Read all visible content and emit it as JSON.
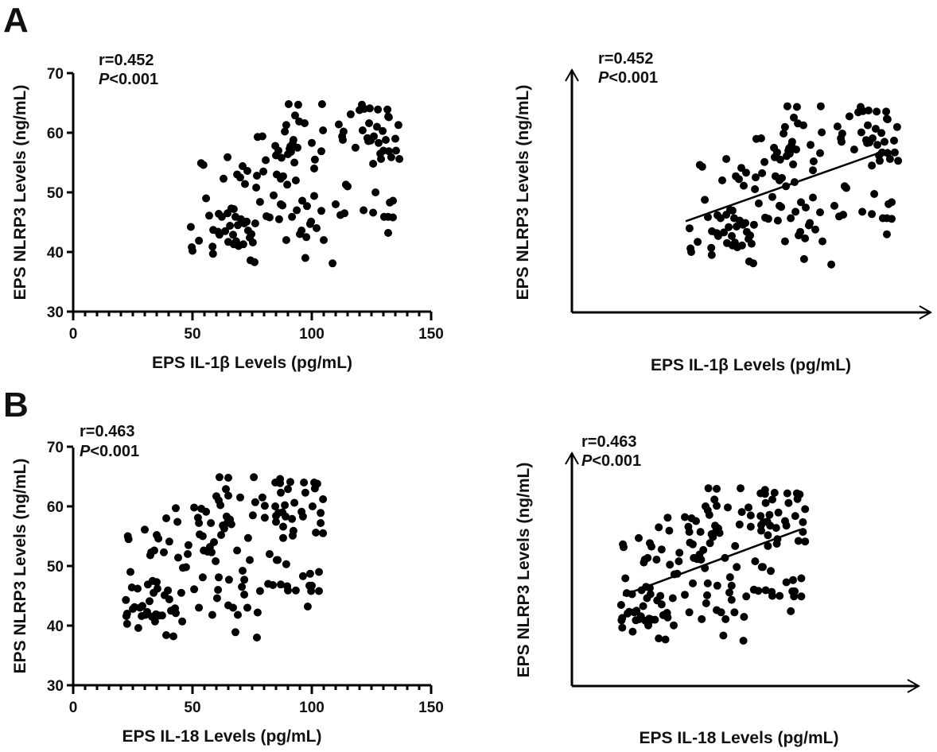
{
  "figure": {
    "panel_labels": [
      "A",
      "B"
    ]
  },
  "chart_data": [
    {
      "id": "A-left",
      "type": "scatter",
      "panel": "A",
      "annotation": {
        "r": "r=0.452",
        "p_italic": "P",
        "p_rest": "<0.001"
      },
      "xlabel": "EPS IL-1β Levels (pg/mL)",
      "ylabel": "EPS NLRP3 Levels (ng/mL)",
      "xlim": [
        0,
        150
      ],
      "ylim": [
        30,
        70
      ],
      "xticks": [
        0,
        50,
        100,
        150
      ],
      "yticks": [
        30,
        40,
        50,
        60,
        70
      ],
      "x_minor_step": 5,
      "grid": false,
      "fit_line": null,
      "points_ref": "A"
    },
    {
      "id": "A-right",
      "type": "scatter",
      "panel": "A",
      "annotation": {
        "r": "r=0.452",
        "p_italic": "P",
        "p_rest": "<0.001"
      },
      "xlabel": "EPS IL-1β Levels (pg/mL)",
      "ylabel": "EPS NLRP3 Levels (ng/mL)",
      "axes_style": "arrows-no-ticks",
      "grid": false,
      "fit_line": {
        "x": [
          47.7,
          132.7
        ],
        "y": [
          45.4,
          57.5
        ]
      },
      "points_ref": "A"
    },
    {
      "id": "B-left",
      "type": "scatter",
      "panel": "B",
      "annotation": {
        "r": "r=0.463",
        "p_italic": "P",
        "p_rest": "<0.001"
      },
      "xlabel": "EPS IL-18 Levels (pg/mL)",
      "ylabel": "EPS NLRP3 Levels (ng/mL)",
      "xlim": [
        0,
        150
      ],
      "ylim": [
        30,
        70
      ],
      "xticks": [
        0,
        50,
        100,
        150
      ],
      "yticks": [
        30,
        40,
        50,
        60,
        70
      ],
      "x_minor_step": 5,
      "grid": false,
      "fit_line": null,
      "points_ref": "B"
    },
    {
      "id": "B-right",
      "type": "scatter",
      "panel": "B",
      "annotation": {
        "r": "r=0.463",
        "p_italic": "P",
        "p_rest": "<0.001"
      },
      "xlabel": "EPS IL-18 Levels (pg/mL)",
      "ylabel": "EPS NLRP3 Levels (ng/mL)",
      "axes_style": "arrows-no-ticks",
      "grid": false,
      "fit_line": {
        "x": [
          22.9,
          102.5
        ],
        "y": [
          46.0,
          57.6
        ]
      },
      "points_ref": "B"
    }
  ],
  "datasets": {
    "A": [
      [
        49.3,
        44.2
      ],
      [
        49.7,
        40.8
      ],
      [
        50.0,
        40.2
      ],
      [
        52.7,
        41.9
      ],
      [
        53.6,
        54.9
      ],
      [
        54.6,
        54.6
      ],
      [
        55.7,
        49.0
      ],
      [
        57.0,
        46.1
      ],
      [
        58.4,
        40.9
      ],
      [
        58.6,
        39.7
      ],
      [
        58.7,
        43.7
      ],
      [
        60.7,
        43.4
      ],
      [
        61.0,
        46.4
      ],
      [
        61.3,
        42.9
      ],
      [
        62.3,
        45.9
      ],
      [
        63.0,
        52.3
      ],
      [
        63.7,
        43.5
      ],
      [
        64.7,
        55.9
      ],
      [
        64.7,
        46.5
      ],
      [
        65.0,
        41.7
      ],
      [
        65.7,
        44.4
      ],
      [
        66.3,
        47.3
      ],
      [
        67.0,
        42.9
      ],
      [
        67.3,
        41.3
      ],
      [
        67.3,
        47.2
      ],
      [
        68.0,
        45.9
      ],
      [
        68.7,
        53.0
      ],
      [
        68.3,
        41.8
      ],
      [
        69.0,
        44.5
      ],
      [
        69.3,
        41.0
      ],
      [
        70.0,
        52.5
      ],
      [
        70.3,
        45.5
      ],
      [
        70.7,
        45.2
      ],
      [
        71.0,
        54.4
      ],
      [
        71.3,
        41.3
      ],
      [
        71.7,
        44.8
      ],
      [
        72.0,
        51.4
      ],
      [
        72.7,
        45.1
      ],
      [
        73.0,
        53.6
      ],
      [
        73.3,
        43.6
      ],
      [
        74.0,
        42.4
      ],
      [
        74.3,
        38.6
      ],
      [
        74.7,
        43.0
      ],
      [
        75.3,
        41.6
      ],
      [
        76.0,
        38.3
      ],
      [
        76.3,
        44.8
      ],
      [
        76.7,
        50.8
      ],
      [
        77.0,
        52.8
      ],
      [
        77.3,
        59.3
      ],
      [
        78.3,
        48.4
      ],
      [
        79.3,
        59.4
      ],
      [
        79.7,
        53.5
      ],
      [
        80.7,
        55.4
      ],
      [
        81.0,
        46.0
      ],
      [
        82.3,
        45.8
      ],
      [
        84.0,
        49.5
      ],
      [
        84.7,
        57.8
      ],
      [
        85.0,
        56.2
      ],
      [
        85.3,
        53.0
      ],
      [
        86.0,
        57.0
      ],
      [
        86.3,
        45.5
      ],
      [
        87.0,
        52.3
      ],
      [
        87.0,
        48.0
      ],
      [
        87.3,
        55.8
      ],
      [
        87.7,
        47.8
      ],
      [
        88.0,
        52.7
      ],
      [
        88.7,
        60.2
      ],
      [
        89.3,
        61.3
      ],
      [
        89.7,
        51.3
      ],
      [
        89.3,
        42.0
      ],
      [
        90.3,
        64.8
      ],
      [
        90.0,
        56.4
      ],
      [
        90.7,
        57.3
      ],
      [
        91.0,
        57.7
      ],
      [
        91.3,
        56.8
      ],
      [
        91.7,
        45.9
      ],
      [
        92.0,
        58.2
      ],
      [
        92.3,
        58.8
      ],
      [
        92.7,
        55.0
      ],
      [
        93.0,
        62.9
      ],
      [
        93.3,
        52.0
      ],
      [
        93.7,
        47.0
      ],
      [
        94.0,
        57.5
      ],
      [
        94.3,
        64.7
      ],
      [
        94.7,
        61.9
      ],
      [
        95.0,
        43.0
      ],
      [
        95.7,
        43.6
      ],
      [
        96.0,
        48.6
      ],
      [
        97.0,
        61.6
      ],
      [
        97.3,
        39.0
      ],
      [
        97.7,
        42.5
      ],
      [
        98.0,
        47.7
      ],
      [
        99.3,
        44.7
      ],
      [
        99.7,
        45.1
      ],
      [
        100.0,
        58.3
      ],
      [
        101.0,
        54.0
      ],
      [
        101.3,
        55.5
      ],
      [
        101.0,
        49.4
      ],
      [
        102.0,
        44.0
      ],
      [
        104.0,
        56.9
      ],
      [
        104.0,
        46.9
      ],
      [
        104.3,
        64.8
      ],
      [
        104.7,
        60.4
      ],
      [
        105.0,
        42.0
      ],
      [
        108.7,
        38.1
      ],
      [
        110.0,
        48.0
      ],
      [
        111.3,
        61.4
      ],
      [
        112.0,
        46.2
      ],
      [
        112.7,
        59.4
      ],
      [
        113.0,
        58.8
      ],
      [
        113.3,
        60.2
      ],
      [
        113.7,
        46.5
      ],
      [
        114.3,
        51.3
      ],
      [
        115.0,
        51.0
      ],
      [
        116.3,
        63.1
      ],
      [
        118.3,
        57.5
      ],
      [
        120.0,
        63.8
      ],
      [
        121.0,
        64.7
      ],
      [
        121.3,
        60.4
      ],
      [
        121.7,
        47.0
      ],
      [
        122.0,
        64.0
      ],
      [
        123.3,
        59.1
      ],
      [
        123.7,
        58.6
      ],
      [
        124.0,
        61.6
      ],
      [
        124.3,
        64.1
      ],
      [
        124.7,
        58.7
      ],
      [
        125.7,
        54.8
      ],
      [
        125.7,
        46.6
      ],
      [
        126.0,
        59.4
      ],
      [
        126.7,
        50.0
      ],
      [
        127.3,
        61.0
      ],
      [
        127.7,
        63.9
      ],
      [
        128.0,
        58.3
      ],
      [
        128.7,
        56.5
      ],
      [
        129.0,
        55.6
      ],
      [
        129.7,
        60.3
      ],
      [
        130.0,
        57.0
      ],
      [
        130.3,
        45.9
      ],
      [
        131.0,
        58.8
      ],
      [
        131.7,
        63.9
      ],
      [
        132.0,
        62.7
      ],
      [
        132.3,
        62.6
      ],
      [
        132.3,
        56.9
      ],
      [
        132.7,
        48.3
      ],
      [
        132.0,
        45.9
      ],
      [
        132.0,
        43.2
      ],
      [
        133.3,
        55.9
      ],
      [
        134.0,
        48.6
      ],
      [
        134.0,
        45.8
      ],
      [
        135.0,
        59.0
      ],
      [
        135.3,
        57.0
      ],
      [
        136.3,
        61.3
      ],
      [
        136.7,
        55.6
      ]
    ],
    "B": [
      [
        22.1,
        44.3
      ],
      [
        22.3,
        41.6
      ],
      [
        22.6,
        40.3
      ],
      [
        22.6,
        42.0
      ],
      [
        22.9,
        55.0
      ],
      [
        23.2,
        54.5
      ],
      [
        24.0,
        49.0
      ],
      [
        24.6,
        46.4
      ],
      [
        25.0,
        42.8
      ],
      [
        25.7,
        43.1
      ],
      [
        27.0,
        46.2
      ],
      [
        27.3,
        39.6
      ],
      [
        28.0,
        43.0
      ],
      [
        28.7,
        41.6
      ],
      [
        29.0,
        43.3
      ],
      [
        30.0,
        56.1
      ],
      [
        30.3,
        41.8
      ],
      [
        31.0,
        42.3
      ],
      [
        31.3,
        46.9
      ],
      [
        32.0,
        44.1
      ],
      [
        32.3,
        51.8
      ],
      [
        32.7,
        52.3
      ],
      [
        33.0,
        41.5
      ],
      [
        33.3,
        47.5
      ],
      [
        33.7,
        45.5
      ],
      [
        34.0,
        52.6
      ],
      [
        34.3,
        40.7
      ],
      [
        34.7,
        41.9
      ],
      [
        35.0,
        47.3
      ],
      [
        35.0,
        55.2
      ],
      [
        35.3,
        46.2
      ],
      [
        35.7,
        54.6
      ],
      [
        36.0,
        41.7
      ],
      [
        37.3,
        41.7
      ],
      [
        38.0,
        52.3
      ],
      [
        38.3,
        45.1
      ],
      [
        39.0,
        58.0
      ],
      [
        39.0,
        38.4
      ],
      [
        39.7,
        45.9
      ],
      [
        40.3,
        54.1
      ],
      [
        40.3,
        44.4
      ],
      [
        41.0,
        42.5
      ],
      [
        41.7,
        42.6
      ],
      [
        42.0,
        38.2
      ],
      [
        42.7,
        42.9
      ],
      [
        43.0,
        59.7
      ],
      [
        43.0,
        42.1
      ],
      [
        43.7,
        57.4
      ],
      [
        44.0,
        51.4
      ],
      [
        45.3,
        45.5
      ],
      [
        45.7,
        40.7
      ],
      [
        46.0,
        49.7
      ],
      [
        47.3,
        49.8
      ],
      [
        48.0,
        52.0
      ],
      [
        48.3,
        53.5
      ],
      [
        50.7,
        59.8
      ],
      [
        50.7,
        46.1
      ],
      [
        52.3,
        58.1
      ],
      [
        52.7,
        57.2
      ],
      [
        52.7,
        43.0
      ],
      [
        53.0,
        55.3
      ],
      [
        53.7,
        59.6
      ],
      [
        54.3,
        55.0
      ],
      [
        54.7,
        52.6
      ],
      [
        54.3,
        48.1
      ],
      [
        55.7,
        59.1
      ],
      [
        56.3,
        52.4
      ],
      [
        57.3,
        53.2
      ],
      [
        57.7,
        57.2
      ],
      [
        58.0,
        52.3
      ],
      [
        58.3,
        41.8
      ],
      [
        59.0,
        54.0
      ],
      [
        59.7,
        50.8
      ],
      [
        60.0,
        61.7
      ],
      [
        60.3,
        44.6
      ],
      [
        60.7,
        46.0
      ],
      [
        61.0,
        61.0
      ],
      [
        61.0,
        48.1
      ],
      [
        61.3,
        64.9
      ],
      [
        61.7,
        60.2
      ],
      [
        62.0,
        55.2
      ],
      [
        62.7,
        56.8
      ],
      [
        63.3,
        56.3
      ],
      [
        64.0,
        62.9
      ],
      [
        64.3,
        58.3
      ],
      [
        64.7,
        57.3
      ],
      [
        65.0,
        64.8
      ],
      [
        65.0,
        61.8
      ],
      [
        65.0,
        43.4
      ],
      [
        65.3,
        47.7
      ],
      [
        65.7,
        57.8
      ],
      [
        66.3,
        57.0
      ],
      [
        67.0,
        43.0
      ],
      [
        68.0,
        38.9
      ],
      [
        68.7,
        52.6
      ],
      [
        69.0,
        41.8
      ],
      [
        70.0,
        61.5
      ],
      [
        70.7,
        46.5
      ],
      [
        71.0,
        49.2
      ],
      [
        71.7,
        47.7
      ],
      [
        71.7,
        45.2
      ],
      [
        73.0,
        43.0
      ],
      [
        73.3,
        54.7
      ],
      [
        74.0,
        51.0
      ],
      [
        75.3,
        58.5
      ],
      [
        75.7,
        64.9
      ],
      [
        76.3,
        60.7
      ],
      [
        77.3,
        42.2
      ],
      [
        77.0,
        38.0
      ],
      [
        78.3,
        45.8
      ],
      [
        79.3,
        61.5
      ],
      [
        80.3,
        60.1
      ],
      [
        80.3,
        58.1
      ],
      [
        81.7,
        47.0
      ],
      [
        82.3,
        52.0
      ],
      [
        83.7,
        46.8
      ],
      [
        84.7,
        64.0
      ],
      [
        84.7,
        60.0
      ],
      [
        85.0,
        58.4
      ],
      [
        85.0,
        57.4
      ],
      [
        85.3,
        51.0
      ],
      [
        85.7,
        51.0
      ],
      [
        86.0,
        58.9
      ],
      [
        86.7,
        64.6
      ],
      [
        86.7,
        63.9
      ],
      [
        87.0,
        62.3
      ],
      [
        87.0,
        46.9
      ],
      [
        87.7,
        59.0
      ],
      [
        88.0,
        56.6
      ],
      [
        88.0,
        54.7
      ],
      [
        88.7,
        60.2
      ],
      [
        89.0,
        58.3
      ],
      [
        89.3,
        50.3
      ],
      [
        89.7,
        46.6
      ],
      [
        90.0,
        45.9
      ],
      [
        90.0,
        62.9
      ],
      [
        91.0,
        64.1
      ],
      [
        91.7,
        57.9
      ],
      [
        92.0,
        55.1
      ],
      [
        92.3,
        55.9
      ],
      [
        92.7,
        60.6
      ],
      [
        93.3,
        45.9
      ],
      [
        95.7,
        59.1
      ],
      [
        96.3,
        58.3
      ],
      [
        96.3,
        48.3
      ],
      [
        96.7,
        64.0
      ],
      [
        97.3,
        62.3
      ],
      [
        98.3,
        43.2
      ],
      [
        99.0,
        46.7
      ],
      [
        99.3,
        48.7
      ],
      [
        99.7,
        45.8
      ],
      [
        100.0,
        46.7
      ],
      [
        100.3,
        60.0
      ],
      [
        101.0,
        64.0
      ],
      [
        101.3,
        63.0
      ],
      [
        101.7,
        55.6
      ],
      [
        102.3,
        63.8
      ],
      [
        103.0,
        49.0
      ],
      [
        103.0,
        45.8
      ],
      [
        103.7,
        57.2
      ],
      [
        103.7,
        58.9
      ],
      [
        104.7,
        55.5
      ],
      [
        104.7,
        61.2
      ]
    ]
  }
}
